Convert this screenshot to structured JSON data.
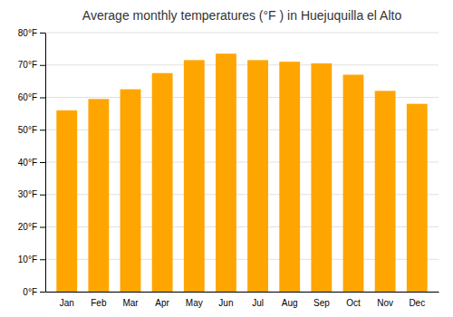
{
  "chart_data": {
    "type": "bar",
    "title": "Average monthly temperatures (°F ) in Huejuquilla el Alto",
    "categories": [
      "Jan",
      "Feb",
      "Mar",
      "Apr",
      "May",
      "Jun",
      "Jul",
      "Aug",
      "Sep",
      "Oct",
      "Nov",
      "Dec"
    ],
    "values": [
      56.0,
      59.5,
      62.5,
      67.5,
      71.5,
      73.5,
      71.5,
      71.0,
      70.5,
      67.0,
      62.0,
      58.0
    ],
    "color": "#FFA500",
    "ylim": [
      0,
      80
    ],
    "yticks": [
      {
        "value": 0,
        "label": "0°F"
      },
      {
        "value": 10,
        "label": "10°F"
      },
      {
        "value": 20,
        "label": "20°F"
      },
      {
        "value": 30,
        "label": "30°F"
      },
      {
        "value": 40,
        "label": "40°F"
      },
      {
        "value": 50,
        "label": "50°F"
      },
      {
        "value": 60,
        "label": "60°F"
      },
      {
        "value": 70,
        "label": "70°F"
      },
      {
        "value": 80,
        "label": "80°F"
      }
    ],
    "grid": true
  }
}
